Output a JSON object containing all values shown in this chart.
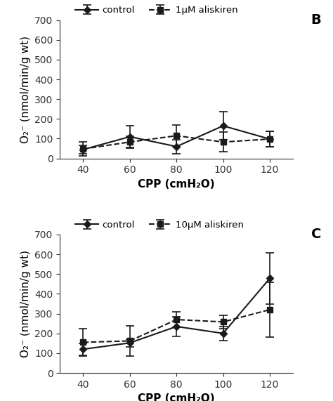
{
  "x": [
    40,
    60,
    80,
    100,
    120
  ],
  "panel_B": {
    "label": "B",
    "control_y": [
      45,
      110,
      60,
      165,
      98
    ],
    "control_yerr": [
      20,
      55,
      35,
      70,
      40
    ],
    "aliskiren_y": [
      48,
      83,
      115,
      83,
      98
    ],
    "aliskiren_yerr": [
      35,
      30,
      55,
      50,
      40
    ],
    "aliskiren_label": "1μM aliskiren"
  },
  "panel_C": {
    "label": "C",
    "control_y": [
      120,
      152,
      235,
      200,
      478
    ],
    "control_yerr": [
      30,
      20,
      50,
      35,
      130
    ],
    "aliskiren_y": [
      155,
      162,
      270,
      258,
      320
    ],
    "aliskiren_yerr": [
      70,
      75,
      40,
      35,
      140
    ],
    "aliskiren_label": "10μM aliskiren"
  },
  "ylim": [
    0,
    700
  ],
  "yticks": [
    0,
    100,
    200,
    300,
    400,
    500,
    600,
    700
  ],
  "xlabel": "CPP (cmH₂O)",
  "ylabel": "O₂⁻ (nmol/min/g wt)",
  "control_label": "control",
  "background_color": "#ffffff",
  "line_color": "#1a1a1a",
  "capsize": 4,
  "legend_fontsize": 9.5,
  "axis_fontsize": 11,
  "tick_fontsize": 10
}
